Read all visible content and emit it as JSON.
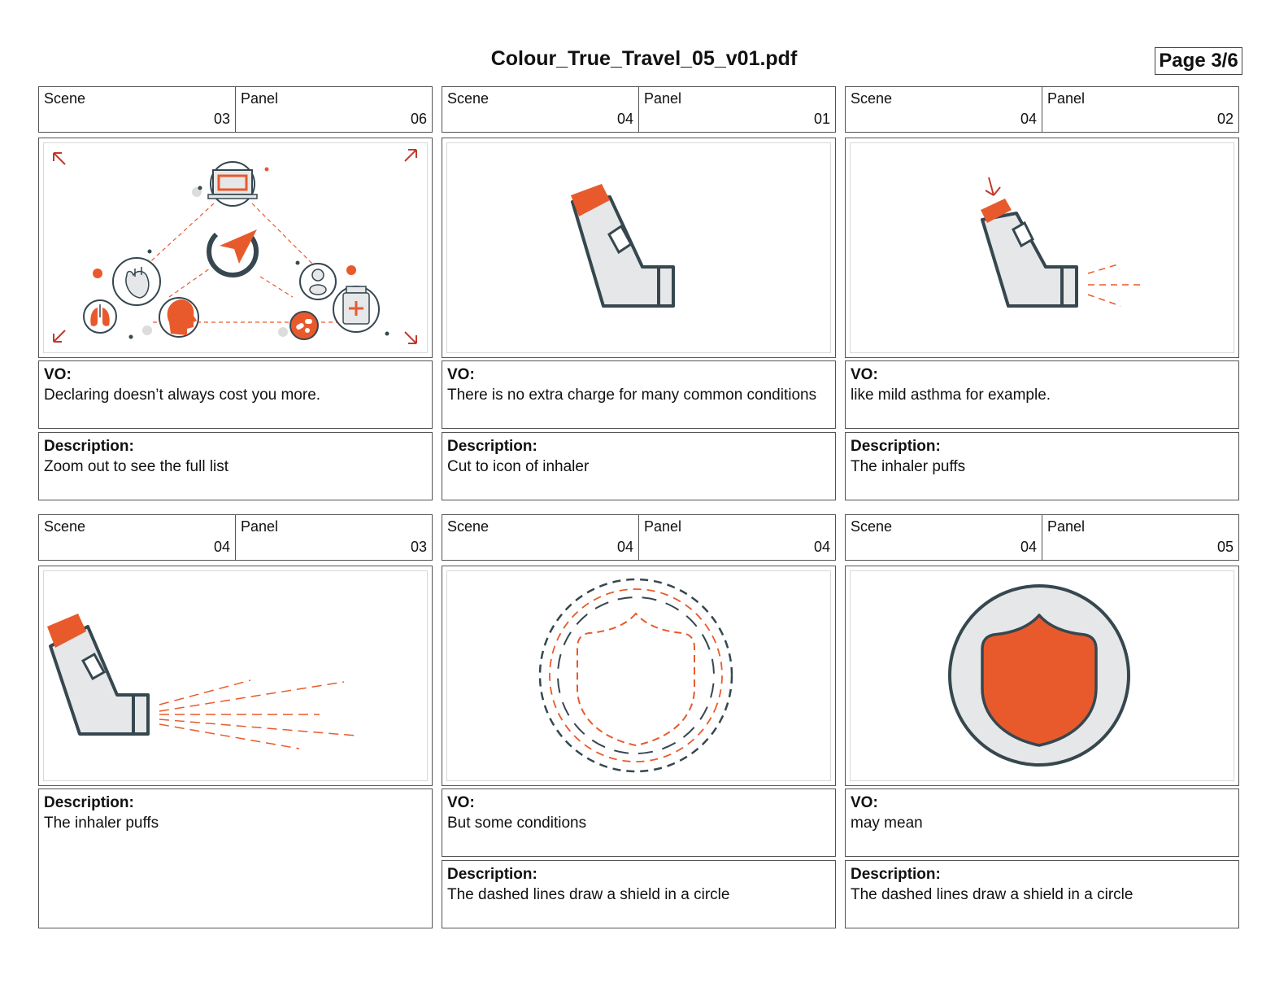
{
  "document": {
    "title": "Colour_True_Travel_05_v01.pdf",
    "page": "Page 3/6"
  },
  "labels": {
    "scene": "Scene",
    "panel": "Panel",
    "vo": "VO:",
    "description": "Description:"
  },
  "colors": {
    "accent": "#e85a2c",
    "outline": "#36474f",
    "fill_grey": "#e6e7e8"
  },
  "panels": [
    {
      "scene": "03",
      "panel": "06",
      "illustration": "health-icons-network",
      "vo": "Declaring doesn’t always cost you more.",
      "description": "Zoom out to see the full list"
    },
    {
      "scene": "04",
      "panel": "01",
      "illustration": "inhaler-icon",
      "vo": "There is no extra charge for many common conditions",
      "description": "Cut to icon of inhaler"
    },
    {
      "scene": "04",
      "panel": "02",
      "illustration": "inhaler-puff-icon",
      "vo": "like mild asthma for example.",
      "description": "The inhaler puffs"
    },
    {
      "scene": "04",
      "panel": "03",
      "illustration": "inhaler-spray-icon",
      "description": "The inhaler puffs"
    },
    {
      "scene": "04",
      "panel": "04",
      "illustration": "dashed-shield-circle-icon",
      "vo": "But some conditions",
      "description": "The dashed lines draw a shield in a circle"
    },
    {
      "scene": "04",
      "panel": "05",
      "illustration": "shield-circle-icon",
      "vo": "may mean",
      "description": "The dashed lines draw a shield in a circle"
    }
  ]
}
